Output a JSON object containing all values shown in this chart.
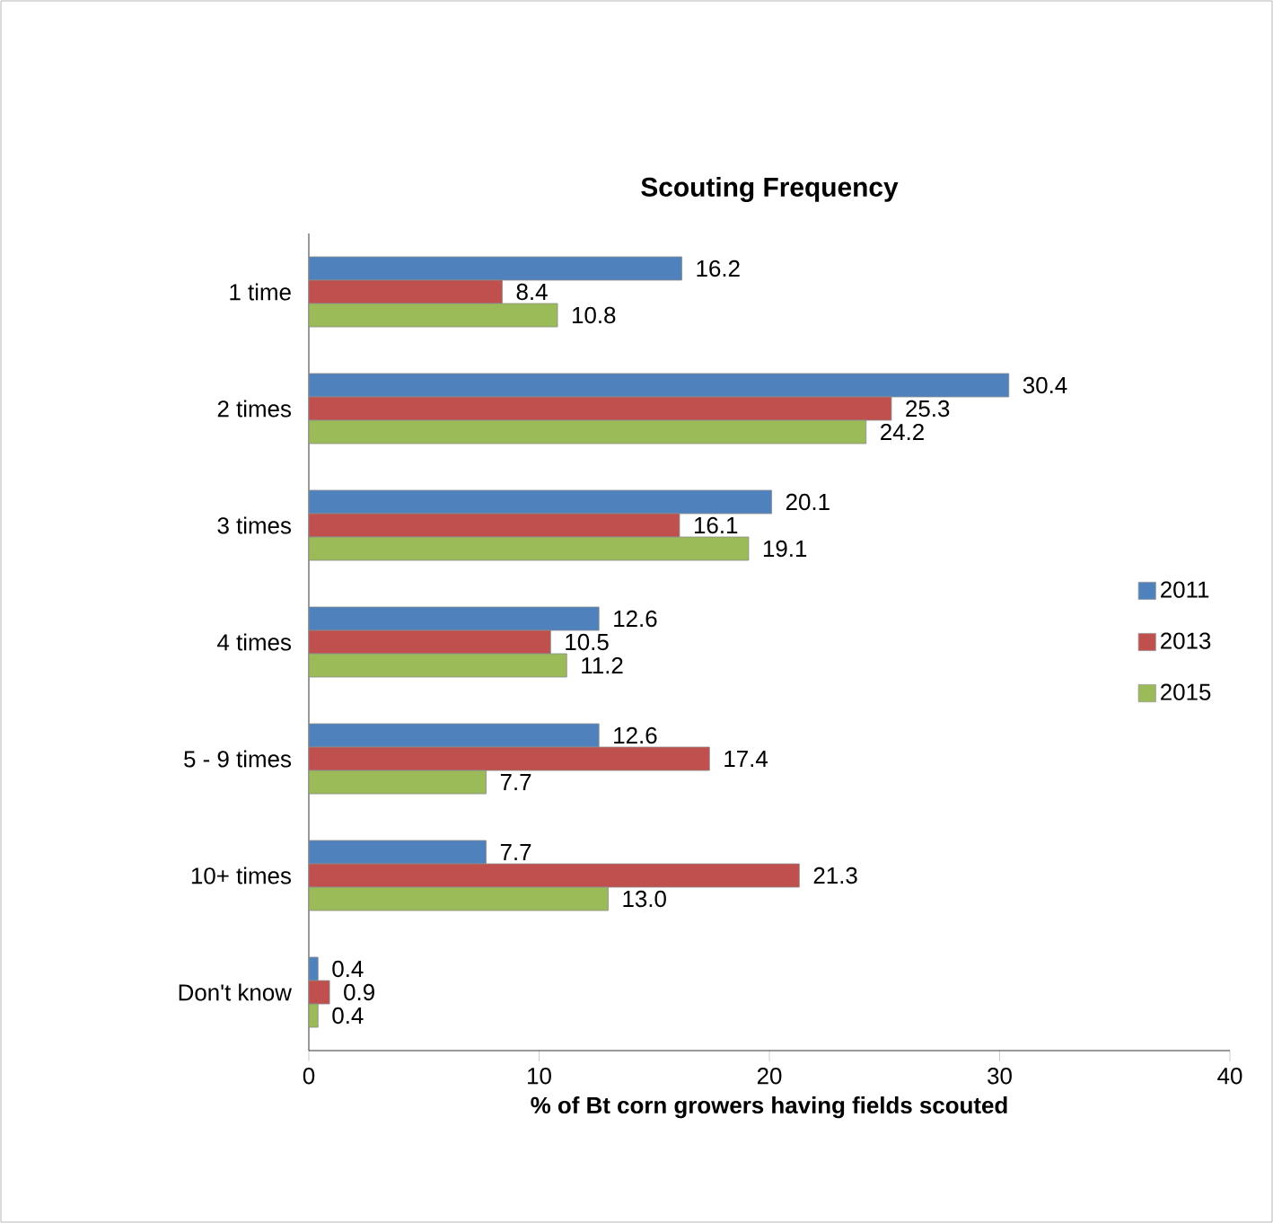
{
  "chart_data": {
    "type": "bar",
    "orientation": "horizontal",
    "title": "**Scouting Frequency**",
    "xlabel": "**% of Bt corn growers having fields scouted**",
    "categories": [
      "1 time",
      "2  times",
      "3  times",
      "4  times",
      "5 - 9  times",
      "10+ times",
      "Don't know"
    ],
    "series": [
      {
        "name": "2011",
        "color": "#4f81bd",
        "values": [
          16.2,
          30.4,
          20.1,
          12.6,
          12.6,
          7.7,
          0.4
        ],
        "value_labels": [
          "16.2",
          "30.4",
          "20.1",
          "12.6",
          "12.6",
          "7.7",
          "0.4"
        ]
      },
      {
        "name": "2013",
        "color": "#c0504d",
        "values": [
          8.4,
          25.3,
          16.1,
          10.5,
          17.4,
          21.3,
          0.9
        ],
        "value_labels": [
          "8.4",
          "25.3",
          "16.1",
          "10.5",
          "17.4",
          "21.3",
          "0.9"
        ]
      },
      {
        "name": "2015",
        "color": "#9bbb59",
        "values": [
          10.8,
          24.2,
          19.1,
          11.2,
          7.7,
          13.0,
          0.4
        ],
        "value_labels": [
          "10.8",
          "24.2",
          "19.1",
          "11.2",
          "7.7",
          "13.0",
          "0.4"
        ]
      }
    ],
    "xlim": [
      0,
      40
    ],
    "xticks": [
      0,
      10,
      20,
      30,
      40
    ],
    "legend": "right"
  }
}
